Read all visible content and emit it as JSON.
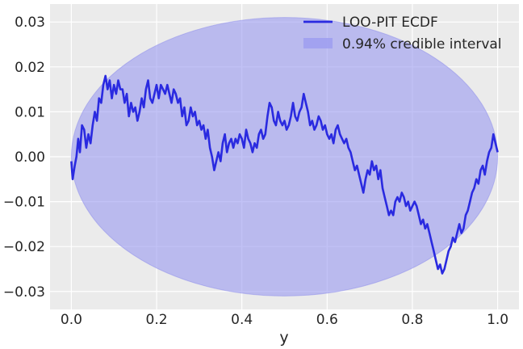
{
  "chart_data": {
    "type": "line",
    "title": "",
    "xlabel": "y",
    "ylabel": "",
    "xlim": [
      -0.05,
      1.05
    ],
    "ylim": [
      -0.034,
      0.034
    ],
    "x_ticks": [
      0.0,
      0.2,
      0.4,
      0.6,
      0.8,
      1.0
    ],
    "x_tick_labels": [
      "0.0",
      "0.2",
      "0.4",
      "0.6",
      "0.8",
      "1.0"
    ],
    "y_ticks": [
      0.03,
      0.02,
      0.01,
      0.0,
      -0.01,
      -0.02,
      -0.03
    ],
    "y_tick_labels": [
      "0.03",
      "0.02",
      "0.01",
      "0.00",
      "−0.01",
      "−0.02",
      "−0.03"
    ],
    "grid": true,
    "legend_position": "top-right",
    "colors": {
      "background": "#ebebeb",
      "grid": "#ffffff",
      "line": "#2a2ae0",
      "band_fill": "#9a9af0",
      "band_edge": "#8c8cec"
    },
    "series": [
      {
        "name": "LOO-PIT ECDF",
        "kind": "line",
        "points": [
          [
            0.0,
            -0.001
          ],
          [
            0.003,
            -0.005
          ],
          [
            0.008,
            -0.002
          ],
          [
            0.012,
            0.0
          ],
          [
            0.016,
            0.004
          ],
          [
            0.02,
            0.001
          ],
          [
            0.025,
            0.007
          ],
          [
            0.03,
            0.006
          ],
          [
            0.035,
            0.002
          ],
          [
            0.04,
            0.005
          ],
          [
            0.045,
            0.003
          ],
          [
            0.05,
            0.007
          ],
          [
            0.055,
            0.01
          ],
          [
            0.06,
            0.008
          ],
          [
            0.065,
            0.013
          ],
          [
            0.07,
            0.012
          ],
          [
            0.075,
            0.016
          ],
          [
            0.08,
            0.018
          ],
          [
            0.085,
            0.015
          ],
          [
            0.09,
            0.017
          ],
          [
            0.095,
            0.013
          ],
          [
            0.1,
            0.016
          ],
          [
            0.105,
            0.014
          ],
          [
            0.11,
            0.017
          ],
          [
            0.115,
            0.015
          ],
          [
            0.12,
            0.015
          ],
          [
            0.125,
            0.012
          ],
          [
            0.13,
            0.014
          ],
          [
            0.135,
            0.009
          ],
          [
            0.14,
            0.012
          ],
          [
            0.145,
            0.01
          ],
          [
            0.15,
            0.011
          ],
          [
            0.155,
            0.008
          ],
          [
            0.16,
            0.01
          ],
          [
            0.165,
            0.013
          ],
          [
            0.17,
            0.011
          ],
          [
            0.175,
            0.015
          ],
          [
            0.18,
            0.017
          ],
          [
            0.185,
            0.013
          ],
          [
            0.19,
            0.012
          ],
          [
            0.195,
            0.014
          ],
          [
            0.2,
            0.016
          ],
          [
            0.205,
            0.013
          ],
          [
            0.21,
            0.016
          ],
          [
            0.215,
            0.015
          ],
          [
            0.22,
            0.014
          ],
          [
            0.225,
            0.016
          ],
          [
            0.23,
            0.014
          ],
          [
            0.235,
            0.012
          ],
          [
            0.24,
            0.015
          ],
          [
            0.245,
            0.014
          ],
          [
            0.25,
            0.012
          ],
          [
            0.255,
            0.013
          ],
          [
            0.26,
            0.009
          ],
          [
            0.265,
            0.011
          ],
          [
            0.27,
            0.007
          ],
          [
            0.275,
            0.008
          ],
          [
            0.28,
            0.011
          ],
          [
            0.285,
            0.009
          ],
          [
            0.29,
            0.01
          ],
          [
            0.295,
            0.007
          ],
          [
            0.3,
            0.008
          ],
          [
            0.305,
            0.006
          ],
          [
            0.31,
            0.007
          ],
          [
            0.315,
            0.004
          ],
          [
            0.32,
            0.006
          ],
          [
            0.325,
            0.002
          ],
          [
            0.33,
            0.0
          ],
          [
            0.335,
            -0.003
          ],
          [
            0.34,
            -0.001
          ],
          [
            0.345,
            0.001
          ],
          [
            0.35,
            -0.001
          ],
          [
            0.355,
            0.003
          ],
          [
            0.36,
            0.005
          ],
          [
            0.365,
            0.001
          ],
          [
            0.37,
            0.003
          ],
          [
            0.375,
            0.004
          ],
          [
            0.38,
            0.002
          ],
          [
            0.385,
            0.004
          ],
          [
            0.39,
            0.003
          ],
          [
            0.395,
            0.005
          ],
          [
            0.4,
            0.004
          ],
          [
            0.405,
            0.002
          ],
          [
            0.41,
            0.006
          ],
          [
            0.415,
            0.004
          ],
          [
            0.42,
            0.003
          ],
          [
            0.425,
            0.001
          ],
          [
            0.43,
            0.003
          ],
          [
            0.435,
            0.002
          ],
          [
            0.44,
            0.005
          ],
          [
            0.445,
            0.006
          ],
          [
            0.45,
            0.004
          ],
          [
            0.455,
            0.005
          ],
          [
            0.46,
            0.009
          ],
          [
            0.465,
            0.012
          ],
          [
            0.47,
            0.011
          ],
          [
            0.475,
            0.008
          ],
          [
            0.48,
            0.007
          ],
          [
            0.485,
            0.01
          ],
          [
            0.49,
            0.008
          ],
          [
            0.495,
            0.007
          ],
          [
            0.5,
            0.008
          ],
          [
            0.505,
            0.006
          ],
          [
            0.51,
            0.007
          ],
          [
            0.515,
            0.009
          ],
          [
            0.52,
            0.012
          ],
          [
            0.525,
            0.009
          ],
          [
            0.53,
            0.008
          ],
          [
            0.535,
            0.01
          ],
          [
            0.54,
            0.011
          ],
          [
            0.545,
            0.014
          ],
          [
            0.55,
            0.012
          ],
          [
            0.555,
            0.01
          ],
          [
            0.56,
            0.007
          ],
          [
            0.565,
            0.008
          ],
          [
            0.57,
            0.006
          ],
          [
            0.575,
            0.007
          ],
          [
            0.58,
            0.009
          ],
          [
            0.585,
            0.008
          ],
          [
            0.59,
            0.006
          ],
          [
            0.595,
            0.007
          ],
          [
            0.6,
            0.005
          ],
          [
            0.605,
            0.004
          ],
          [
            0.61,
            0.005
          ],
          [
            0.615,
            0.003
          ],
          [
            0.62,
            0.006
          ],
          [
            0.625,
            0.007
          ],
          [
            0.63,
            0.005
          ],
          [
            0.635,
            0.004
          ],
          [
            0.64,
            0.003
          ],
          [
            0.645,
            0.004
          ],
          [
            0.65,
            0.002
          ],
          [
            0.655,
            0.001
          ],
          [
            0.66,
            -0.001
          ],
          [
            0.665,
            -0.003
          ],
          [
            0.67,
            -0.002
          ],
          [
            0.675,
            -0.004
          ],
          [
            0.68,
            -0.006
          ],
          [
            0.685,
            -0.008
          ],
          [
            0.69,
            -0.005
          ],
          [
            0.695,
            -0.003
          ],
          [
            0.7,
            -0.004
          ],
          [
            0.705,
            -0.001
          ],
          [
            0.71,
            -0.003
          ],
          [
            0.715,
            -0.002
          ],
          [
            0.72,
            -0.005
          ],
          [
            0.725,
            -0.003
          ],
          [
            0.73,
            -0.007
          ],
          [
            0.735,
            -0.009
          ],
          [
            0.74,
            -0.011
          ],
          [
            0.745,
            -0.013
          ],
          [
            0.75,
            -0.012
          ],
          [
            0.755,
            -0.013
          ],
          [
            0.76,
            -0.01
          ],
          [
            0.765,
            -0.009
          ],
          [
            0.77,
            -0.01
          ],
          [
            0.775,
            -0.008
          ],
          [
            0.78,
            -0.009
          ],
          [
            0.785,
            -0.011
          ],
          [
            0.79,
            -0.01
          ],
          [
            0.795,
            -0.012
          ],
          [
            0.8,
            -0.011
          ],
          [
            0.805,
            -0.01
          ],
          [
            0.81,
            -0.011
          ],
          [
            0.815,
            -0.013
          ],
          [
            0.82,
            -0.015
          ],
          [
            0.825,
            -0.014
          ],
          [
            0.83,
            -0.016
          ],
          [
            0.835,
            -0.015
          ],
          [
            0.84,
            -0.017
          ],
          [
            0.845,
            -0.019
          ],
          [
            0.85,
            -0.021
          ],
          [
            0.855,
            -0.023
          ],
          [
            0.86,
            -0.025
          ],
          [
            0.865,
            -0.024
          ],
          [
            0.87,
            -0.026
          ],
          [
            0.875,
            -0.025
          ],
          [
            0.88,
            -0.023
          ],
          [
            0.885,
            -0.021
          ],
          [
            0.89,
            -0.02
          ],
          [
            0.895,
            -0.018
          ],
          [
            0.9,
            -0.019
          ],
          [
            0.905,
            -0.017
          ],
          [
            0.91,
            -0.015
          ],
          [
            0.915,
            -0.017
          ],
          [
            0.92,
            -0.016
          ],
          [
            0.925,
            -0.013
          ],
          [
            0.93,
            -0.012
          ],
          [
            0.935,
            -0.01
          ],
          [
            0.94,
            -0.008
          ],
          [
            0.945,
            -0.007
          ],
          [
            0.95,
            -0.005
          ],
          [
            0.955,
            -0.006
          ],
          [
            0.96,
            -0.003
          ],
          [
            0.965,
            -0.002
          ],
          [
            0.97,
            -0.004
          ],
          [
            0.975,
            -0.001
          ],
          [
            0.98,
            0.001
          ],
          [
            0.985,
            0.002
          ],
          [
            0.99,
            0.005
          ],
          [
            0.995,
            0.003
          ],
          [
            1.0,
            0.001
          ]
        ]
      },
      {
        "name": "0.94% credible interval",
        "kind": "ellipse_band",
        "center": [
          0.5,
          0.0
        ],
        "x_radius": 0.5,
        "y_radius": 0.031,
        "opacity": 0.6
      }
    ]
  }
}
